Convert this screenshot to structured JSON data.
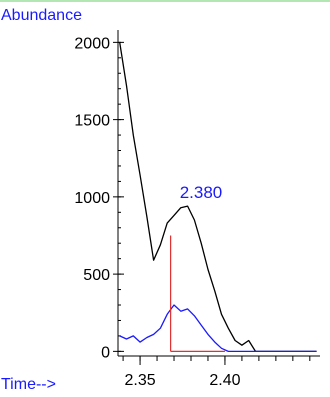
{
  "chart_data": {
    "type": "line",
    "ylabel": "Abundance",
    "xlabel": "Time-->",
    "xlim": [
      2.337,
      2.456
    ],
    "ylim": [
      -30,
      2080
    ],
    "y_ticks": [
      0,
      500,
      1000,
      1500,
      2000
    ],
    "y_tick_labels": [
      "0",
      "500",
      "1000",
      "1500",
      "2000"
    ],
    "x_ticks": [
      2.35,
      2.4
    ],
    "x_tick_labels": [
      "2.35",
      "2.40"
    ],
    "x_minor_step": 0.01,
    "y_minor_step": 100,
    "series": [
      {
        "color": "#000000",
        "points": [
          [
            2.338,
            2000
          ],
          [
            2.342,
            1720
          ],
          [
            2.346,
            1400
          ],
          [
            2.35,
            1140
          ],
          [
            2.354,
            870
          ],
          [
            2.358,
            590
          ],
          [
            2.362,
            690
          ],
          [
            2.366,
            830
          ],
          [
            2.37,
            880
          ],
          [
            2.374,
            930
          ],
          [
            2.378,
            940
          ],
          [
            2.382,
            850
          ],
          [
            2.386,
            700
          ],
          [
            2.39,
            530
          ],
          [
            2.394,
            390
          ],
          [
            2.398,
            240
          ],
          [
            2.402,
            150
          ],
          [
            2.406,
            70
          ],
          [
            2.41,
            40
          ],
          [
            2.414,
            70
          ],
          [
            2.418,
            0
          ],
          [
            2.454,
            0
          ]
        ]
      },
      {
        "color": "#1a1aff",
        "points": [
          [
            2.338,
            100
          ],
          [
            2.342,
            80
          ],
          [
            2.346,
            100
          ],
          [
            2.35,
            60
          ],
          [
            2.354,
            90
          ],
          [
            2.358,
            110
          ],
          [
            2.362,
            150
          ],
          [
            2.366,
            240
          ],
          [
            2.37,
            300
          ],
          [
            2.374,
            260
          ],
          [
            2.378,
            275
          ],
          [
            2.382,
            230
          ],
          [
            2.386,
            170
          ],
          [
            2.39,
            110
          ],
          [
            2.394,
            60
          ],
          [
            2.398,
            20
          ],
          [
            2.402,
            0
          ],
          [
            2.454,
            0
          ]
        ]
      }
    ],
    "annotations": [
      {
        "text": "2.380",
        "x": 2.38,
        "y": 940,
        "color": "#1a1aff"
      }
    ],
    "integration_marker": {
      "color": "#e03030",
      "start": [
        2.368,
        750
      ],
      "end": [
        2.4,
        0
      ]
    },
    "colors": {
      "axis": "#000000",
      "label": "#1a1aff",
      "top_rule": "#66cc66"
    }
  }
}
